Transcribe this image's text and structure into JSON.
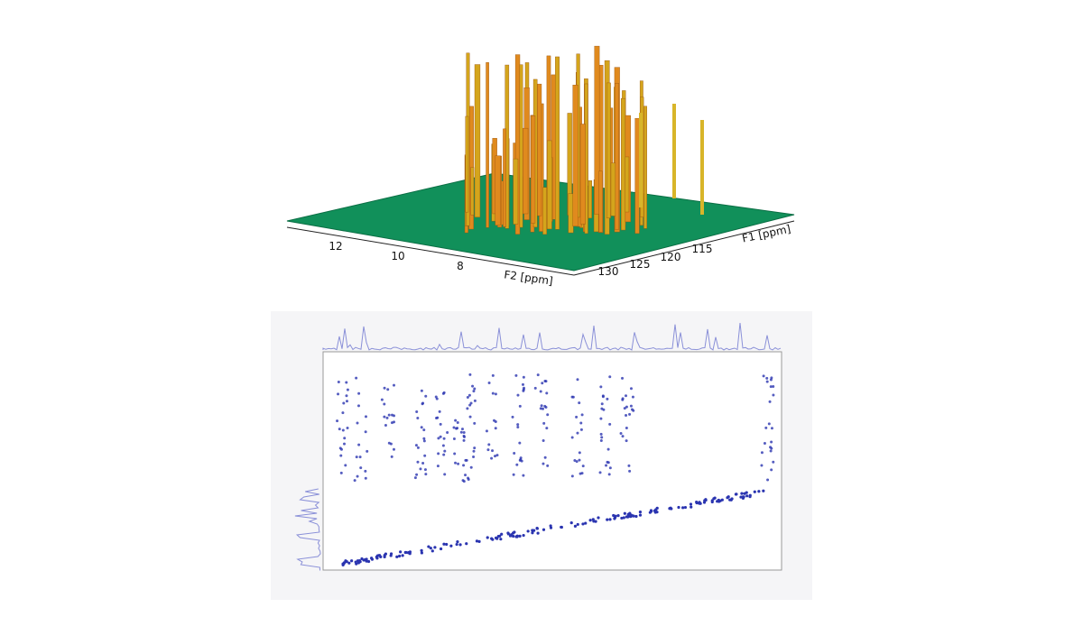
{
  "top_spectrum": {
    "f2_ticks": [
      "12",
      "10",
      "8"
    ],
    "f2_label": "F2 [ppm]",
    "f1_ticks": [
      "130",
      "125",
      "120",
      "115"
    ],
    "f1_label": "F1 [ppm]"
  }
}
